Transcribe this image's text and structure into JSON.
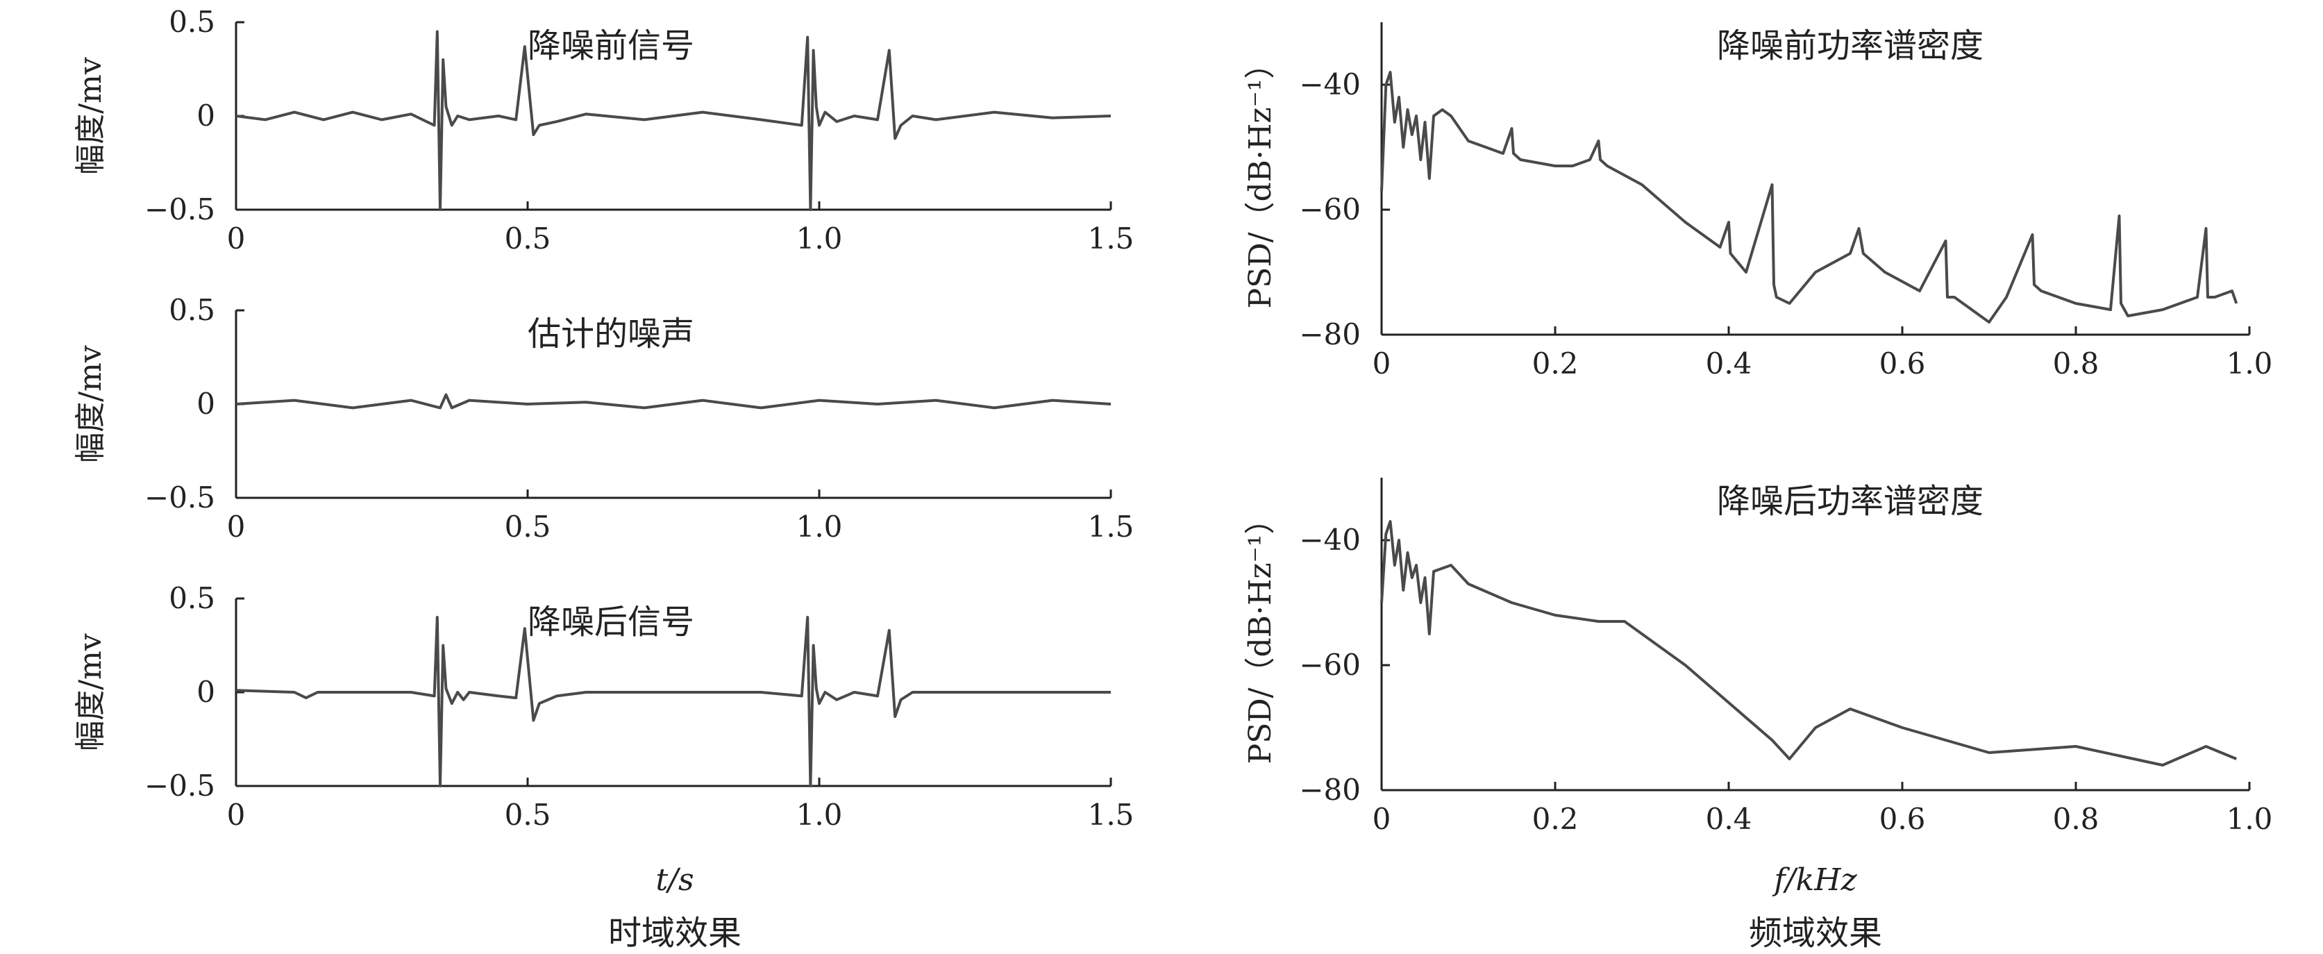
{
  "figure": {
    "left_caption": "时域效果",
    "right_caption": "频域效果",
    "left_xlabel": "t/s",
    "right_xlabel": "f/kHz"
  },
  "chart_data": [
    {
      "type": "line",
      "title": "降噪前信号",
      "xlabel": "",
      "ylabel": "幅度/mv",
      "xlim": [
        0,
        1.5
      ],
      "ylim": [
        -0.5,
        0.5
      ],
      "xticks": [
        "0",
        "0.5",
        "1.0",
        "1.5"
      ],
      "yticks": [
        "−0.5",
        "0",
        "0.5"
      ],
      "series": [
        {
          "color": "#4a4a4a",
          "x": [
            0,
            0.05,
            0.1,
            0.15,
            0.2,
            0.25,
            0.3,
            0.34,
            0.345,
            0.35,
            0.355,
            0.36,
            0.37,
            0.38,
            0.4,
            0.45,
            0.48,
            0.495,
            0.51,
            0.52,
            0.55,
            0.6,
            0.7,
            0.8,
            0.9,
            0.97,
            0.98,
            0.985,
            0.99,
            0.995,
            1.0,
            1.01,
            1.03,
            1.06,
            1.1,
            1.12,
            1.13,
            1.14,
            1.16,
            1.2,
            1.3,
            1.4,
            1.5
          ],
          "y": [
            0.0,
            -0.02,
            0.02,
            -0.02,
            0.02,
            -0.02,
            0.01,
            -0.05,
            0.45,
            -0.5,
            0.3,
            0.05,
            -0.05,
            0.0,
            -0.02,
            0.0,
            -0.02,
            0.37,
            -0.1,
            -0.05,
            -0.03,
            0.01,
            -0.02,
            0.02,
            -0.02,
            -0.05,
            0.42,
            -0.5,
            0.35,
            0.05,
            -0.05,
            0.02,
            -0.03,
            0.0,
            -0.02,
            0.35,
            -0.12,
            -0.05,
            0.0,
            -0.02,
            0.02,
            -0.01,
            0.0
          ]
        }
      ]
    },
    {
      "type": "line",
      "title": "估计的噪声",
      "xlabel": "",
      "ylabel": "幅度/mv",
      "xlim": [
        0,
        1.5
      ],
      "ylim": [
        -0.5,
        0.5
      ],
      "xticks": [
        "0",
        "0.5",
        "1.0",
        "1.5"
      ],
      "yticks": [
        "−0.5",
        "0",
        "0.5"
      ],
      "series": [
        {
          "color": "#4a4a4a",
          "x": [
            0,
            0.1,
            0.2,
            0.3,
            0.35,
            0.36,
            0.37,
            0.4,
            0.5,
            0.6,
            0.7,
            0.8,
            0.9,
            1.0,
            1.1,
            1.2,
            1.3,
            1.4,
            1.5
          ],
          "y": [
            0.0,
            0.02,
            -0.02,
            0.02,
            -0.02,
            0.05,
            -0.02,
            0.02,
            0.0,
            0.01,
            -0.02,
            0.02,
            -0.02,
            0.02,
            0.0,
            0.02,
            -0.02,
            0.02,
            0.0
          ]
        }
      ]
    },
    {
      "type": "line",
      "title": "降噪后信号",
      "xlabel": "t/s",
      "ylabel": "幅度/mv",
      "xlim": [
        0,
        1.5
      ],
      "ylim": [
        -0.5,
        0.5
      ],
      "xticks": [
        "0",
        "0.5",
        "1.0",
        "1.5"
      ],
      "yticks": [
        "−0.5",
        "0",
        "0.5"
      ],
      "series": [
        {
          "color": "#4a4a4a",
          "x": [
            0,
            0.1,
            0.12,
            0.14,
            0.2,
            0.3,
            0.34,
            0.345,
            0.35,
            0.355,
            0.36,
            0.37,
            0.38,
            0.39,
            0.4,
            0.45,
            0.48,
            0.495,
            0.51,
            0.52,
            0.55,
            0.6,
            0.7,
            0.8,
            0.9,
            0.97,
            0.98,
            0.985,
            0.99,
            0.995,
            1.0,
            1.01,
            1.03,
            1.06,
            1.1,
            1.12,
            1.13,
            1.14,
            1.16,
            1.2,
            1.3,
            1.4,
            1.5
          ],
          "y": [
            0.01,
            0.0,
            -0.03,
            0.0,
            0.0,
            0.0,
            -0.02,
            0.4,
            -0.5,
            0.25,
            0.02,
            -0.06,
            0.0,
            -0.04,
            0.0,
            -0.02,
            -0.03,
            0.34,
            -0.15,
            -0.06,
            -0.02,
            0.0,
            0.0,
            0.0,
            0.0,
            -0.02,
            0.4,
            -0.5,
            0.25,
            0.02,
            -0.06,
            0.0,
            -0.04,
            0.0,
            -0.02,
            0.33,
            -0.13,
            -0.04,
            0.0,
            0.0,
            0.0,
            0.0,
            0.0
          ]
        }
      ]
    },
    {
      "type": "line",
      "title": "降噪前功率谱密度",
      "xlabel": "",
      "ylabel": "PSD/（dB·Hz⁻¹）",
      "xlim": [
        0,
        1.0
      ],
      "ylim": [
        -80,
        -30
      ],
      "xticks": [
        "0",
        "0.2",
        "0.4",
        "0.6",
        "0.8",
        "1.0"
      ],
      "yticks": [
        "−80",
        "−60",
        "−40"
      ],
      "series": [
        {
          "color": "#4a4a4a",
          "x": [
            0,
            0.005,
            0.01,
            0.015,
            0.02,
            0.025,
            0.03,
            0.035,
            0.04,
            0.045,
            0.05,
            0.055,
            0.06,
            0.07,
            0.08,
            0.1,
            0.12,
            0.14,
            0.15,
            0.152,
            0.16,
            0.2,
            0.22,
            0.24,
            0.25,
            0.252,
            0.26,
            0.3,
            0.35,
            0.39,
            0.4,
            0.402,
            0.42,
            0.45,
            0.452,
            0.455,
            0.47,
            0.5,
            0.54,
            0.55,
            0.555,
            0.58,
            0.62,
            0.65,
            0.652,
            0.66,
            0.7,
            0.72,
            0.75,
            0.752,
            0.76,
            0.8,
            0.84,
            0.85,
            0.852,
            0.86,
            0.9,
            0.94,
            0.95,
            0.952,
            0.96,
            0.98,
            0.985
          ],
          "y": [
            -57,
            -40,
            -38,
            -46,
            -42,
            -50,
            -44,
            -48,
            -45,
            -52,
            -46,
            -55,
            -45,
            -44,
            -45,
            -49,
            -50,
            -51,
            -47,
            -51,
            -52,
            -53,
            -53,
            -52,
            -49,
            -52,
            -53,
            -56,
            -62,
            -66,
            -62,
            -67,
            -70,
            -56,
            -72,
            -74,
            -75,
            -70,
            -67,
            -63,
            -67,
            -70,
            -73,
            -65,
            -74,
            -74,
            -78,
            -74,
            -64,
            -72,
            -73,
            -75,
            -76,
            -61,
            -75,
            -77,
            -76,
            -74,
            -63,
            -74,
            -74,
            -73,
            -75
          ]
        }
      ]
    },
    {
      "type": "line",
      "title": "降噪后功率谱密度",
      "xlabel": "f/kHz",
      "ylabel": "PSD/（dB·Hz⁻¹）",
      "xlim": [
        0,
        1.0
      ],
      "ylim": [
        -80,
        -30
      ],
      "xticks": [
        "0",
        "0.2",
        "0.4",
        "0.6",
        "0.8",
        "1.0"
      ],
      "yticks": [
        "−80",
        "−60",
        "−40"
      ],
      "series": [
        {
          "color": "#4a4a4a",
          "x": [
            0,
            0.005,
            0.01,
            0.015,
            0.02,
            0.025,
            0.03,
            0.035,
            0.04,
            0.045,
            0.05,
            0.055,
            0.06,
            0.08,
            0.1,
            0.15,
            0.2,
            0.25,
            0.28,
            0.35,
            0.4,
            0.45,
            0.47,
            0.5,
            0.54,
            0.6,
            0.65,
            0.7,
            0.75,
            0.8,
            0.85,
            0.9,
            0.95,
            0.985
          ],
          "y": [
            -50,
            -39,
            -37,
            -44,
            -40,
            -48,
            -42,
            -46,
            -44,
            -50,
            -46,
            -55,
            -45,
            -44,
            -47,
            -50,
            -52,
            -53,
            -53,
            -60,
            -66,
            -72,
            -75,
            -70,
            -67,
            -70,
            -72,
            -74,
            -73.5,
            -73,
            -74.5,
            -76,
            -73,
            -75
          ]
        }
      ]
    }
  ]
}
